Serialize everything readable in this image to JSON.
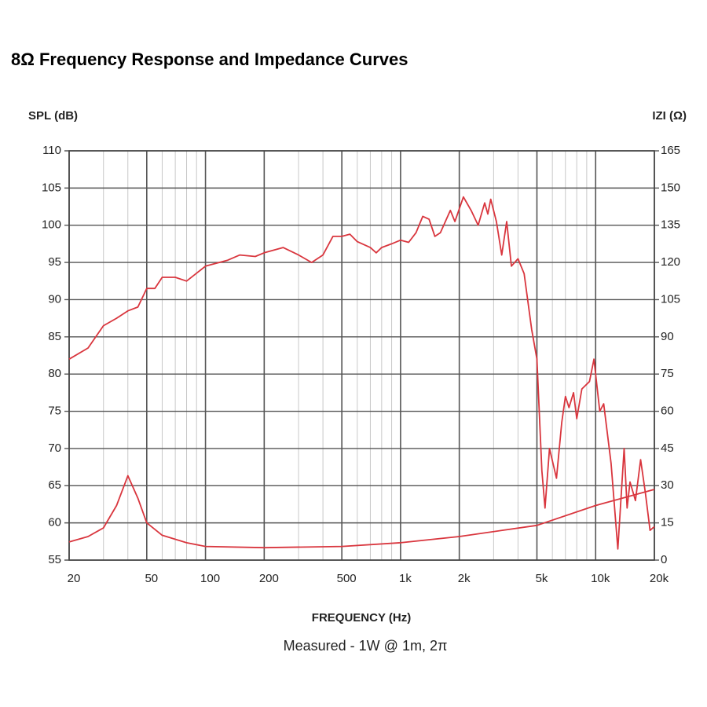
{
  "chart_data": {
    "type": "line",
    "title": "8Ω Frequency Response and Impedance Curves",
    "ylabel": "SPL (dB)",
    "y2label": "IZI (Ω)",
    "xlabel": "FREQUENCY (Hz)",
    "subtitle": "Measured - 1W @ 1m, 2π",
    "xscale": "log",
    "grid": true,
    "xlim": [
      20,
      20000
    ],
    "xticks": [
      20,
      50,
      100,
      200,
      500,
      {
        "value": 1000,
        "label": "1k"
      },
      {
        "value": 2000,
        "label": "2k"
      },
      {
        "value": 5000,
        "label": "5k"
      },
      {
        "value": 10000,
        "label": "10k"
      },
      {
        "value": 20000,
        "label": "20k"
      }
    ],
    "xminorticks": [
      30,
      40,
      60,
      70,
      80,
      90,
      300,
      400,
      600,
      700,
      800,
      900,
      3000,
      4000,
      6000,
      7000,
      8000,
      9000
    ],
    "ylim": [
      55,
      110
    ],
    "yticks": [
      55,
      60,
      65,
      70,
      75,
      80,
      85,
      90,
      95,
      100,
      105,
      110
    ],
    "y2lim": [
      0,
      165
    ],
    "y2ticks": [
      0,
      15,
      30,
      45,
      60,
      75,
      90,
      105,
      120,
      135,
      150,
      165
    ],
    "series": [
      {
        "color": "#d9363e",
        "x": [
          20,
          25,
          30,
          35,
          40,
          45,
          50,
          55,
          60,
          70,
          80,
          100,
          130,
          150,
          180,
          200,
          250,
          300,
          350,
          400,
          450,
          500,
          550,
          600,
          700,
          750,
          800,
          900,
          1000,
          1100,
          1200,
          1300,
          1400,
          1500,
          1600,
          1800,
          1900,
          2100,
          2300,
          2500,
          2700,
          2800,
          2900,
          3100,
          3300,
          3500,
          3700,
          4000,
          4300,
          4700,
          5000,
          5300,
          5500,
          5800,
          6300,
          6700,
          7000,
          7300,
          7700,
          8000,
          8500,
          9300,
          9800,
          10500,
          11000,
          12000,
          13000,
          14000,
          14500,
          15000,
          16000,
          17000,
          18000,
          19000,
          20000
        ],
        "values": [
          82,
          83.5,
          86.5,
          87.5,
          88.5,
          89,
          91.5,
          91.5,
          93,
          93,
          92.5,
          94.5,
          95.3,
          96,
          95.8,
          96.3,
          97,
          96,
          95,
          96,
          98.5,
          98.5,
          98.8,
          97.8,
          97,
          96.3,
          97,
          97.5,
          98,
          97.7,
          99,
          101.2,
          100.8,
          98.5,
          99,
          102,
          100.5,
          103.8,
          102,
          100,
          103,
          101.5,
          103.5,
          100.5,
          96,
          100.5,
          94.5,
          95.5,
          93.5,
          86,
          82,
          67,
          62,
          70,
          66,
          73.5,
          77,
          75.5,
          77.5,
          74,
          78,
          79,
          82,
          75,
          76,
          68,
          56.5,
          70,
          62,
          65.5,
          63,
          68.5,
          64,
          59,
          59.5
        ]
      },
      {
        "color": "#d9363e",
        "axis": "y2",
        "x": [
          20,
          25,
          30,
          35,
          40,
          45,
          50,
          60,
          80,
          100,
          200,
          500,
          1000,
          2000,
          5000,
          10000,
          20000
        ],
        "values": [
          7.3,
          9.5,
          13,
          22,
          34,
          25,
          15,
          10,
          7,
          5.5,
          5,
          5.5,
          7,
          9.5,
          14,
          22,
          28.5
        ]
      }
    ]
  }
}
